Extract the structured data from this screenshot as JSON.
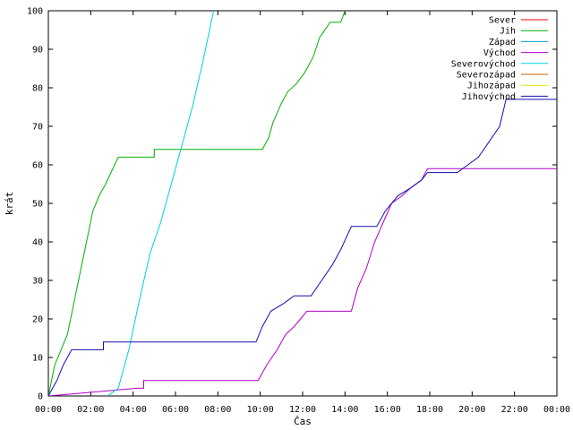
{
  "chart_data": {
    "type": "line",
    "xlabel": "Čas",
    "ylabel": "krát",
    "ylim": [
      0,
      100
    ],
    "xlim": [
      0,
      24
    ],
    "x_ticks": [
      "00:00",
      "02:00",
      "04:00",
      "06:00",
      "08:00",
      "10:00",
      "12:00",
      "14:00",
      "16:00",
      "18:00",
      "20:00",
      "22:00",
      "00:00"
    ],
    "y_ticks": [
      "0",
      "10",
      "20",
      "30",
      "40",
      "50",
      "60",
      "70",
      "80",
      "90",
      "100"
    ],
    "legend_position": "top-right",
    "series": [
      {
        "name": "Sever",
        "color": "#ff0000",
        "x": [],
        "y": []
      },
      {
        "name": "Jih",
        "color": "#00b000",
        "x": [
          0,
          0.3,
          0.6,
          0.9,
          1.2,
          1.5,
          1.8,
          2.1,
          2.4,
          2.7,
          3.3,
          5.0,
          5.0,
          10.1,
          10.4,
          10.6,
          11.0,
          11.3,
          11.7,
          12.1,
          12.5,
          12.8,
          13.3,
          13.8,
          14.0
        ],
        "y": [
          0,
          8,
          12,
          16,
          24,
          32,
          40,
          48,
          52,
          55,
          62,
          62,
          64,
          64,
          67,
          71,
          76,
          79,
          81,
          84,
          88,
          93,
          97,
          97,
          100
        ]
      },
      {
        "name": "Západ",
        "color": "#00a0c8",
        "x": [],
        "y": []
      },
      {
        "name": "Východ",
        "color": "#b000c8",
        "x": [
          0,
          4.2,
          4.5,
          4.5,
          9.9,
          10.3,
          10.8,
          11.2,
          11.6,
          12.2,
          14.3,
          14.6,
          15.0,
          15.4,
          15.8,
          16.2,
          16.7,
          17.1,
          17.6,
          17.9,
          24.0
        ],
        "y": [
          0,
          2,
          2,
          4,
          4,
          8,
          12,
          16,
          18,
          22,
          22,
          28,
          33,
          40,
          45,
          50,
          52,
          54,
          56,
          59,
          59
        ]
      },
      {
        "name": "Severovýchod",
        "color": "#00d0d8",
        "x": [
          2.8,
          3.3,
          3.8,
          4.3,
          4.8,
          5.3,
          5.8,
          6.3,
          6.8,
          7.3,
          7.8
        ],
        "y": [
          0,
          2,
          12,
          25,
          37,
          45,
          55,
          65,
          75,
          87,
          100
        ]
      },
      {
        "name": "Severozápad",
        "color": "#c06000",
        "x": [],
        "y": []
      },
      {
        "name": "Jihozápad",
        "color": "#e8e000",
        "x": [],
        "y": []
      },
      {
        "name": "Jihovýchod",
        "color": "#1010b0",
        "x": [
          0,
          0.4,
          0.7,
          1.1,
          2.6,
          2.6,
          9.8,
          10.1,
          10.5,
          11.1,
          11.6,
          12.4,
          12.9,
          13.4,
          13.8,
          14.3,
          15.5,
          15.9,
          16.5,
          17.1,
          17.6,
          17.9,
          19.3,
          19.8,
          20.3,
          20.8,
          21.3,
          21.6,
          24.0
        ],
        "y": [
          0,
          4,
          8,
          12,
          12,
          14,
          14,
          18,
          22,
          24,
          26,
          26,
          30,
          34,
          38,
          44,
          44,
          48,
          52,
          54,
          56,
          58,
          58,
          60,
          62,
          66,
          70,
          77,
          77
        ]
      }
    ]
  }
}
